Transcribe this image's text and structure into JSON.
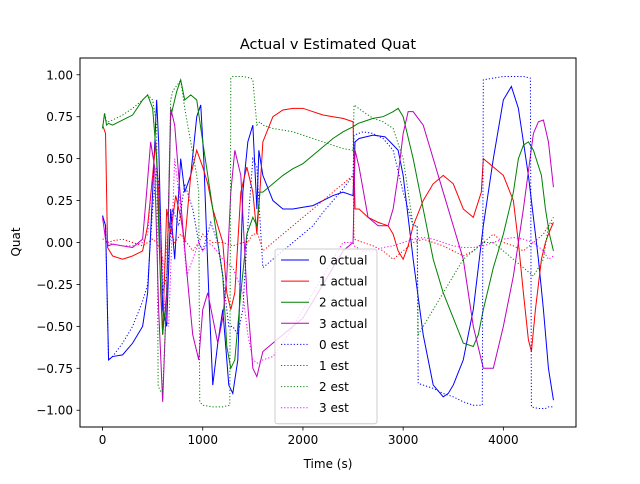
{
  "chart_data": {
    "type": "line",
    "title": "Actual v Estimated Quat",
    "xlabel": "Time (s)",
    "ylabel": "Quat",
    "xlim": [
      -225,
      4725
    ],
    "ylim": [
      -1.1,
      1.1
    ],
    "xticks": [
      0,
      1000,
      2000,
      3000,
      4000
    ],
    "xtick_labels": [
      "0",
      "1000",
      "2000",
      "3000",
      "4000"
    ],
    "yticks": [
      -1.0,
      -0.75,
      -0.5,
      -0.25,
      0.0,
      0.25,
      0.5,
      0.75,
      1.0
    ],
    "ytick_labels": [
      "−1.00",
      "−0.75",
      "−0.50",
      "−0.25",
      "0.00",
      "0.25",
      "0.50",
      "0.75",
      "1.00"
    ],
    "grid": false,
    "legend_position": "lower-center",
    "series": [
      {
        "name": "0 actual",
        "color": "#0000ff",
        "dash": "solid",
        "x": [
          0,
          30,
          60,
          100,
          200,
          300,
          400,
          450,
          500,
          540,
          560,
          600,
          640,
          680,
          720,
          780,
          820,
          880,
          940,
          980,
          1010,
          1060,
          1100,
          1150,
          1200,
          1260,
          1300,
          1350,
          1400,
          1450,
          1500,
          1540,
          1560,
          1600,
          1700,
          1800,
          1900,
          2000,
          2100,
          2200,
          2300,
          2400,
          2500,
          2520,
          2560,
          2700,
          2820,
          2870,
          2950,
          3000,
          3100,
          3200,
          3300,
          3400,
          3450,
          3500,
          3600,
          3700,
          3800,
          3900,
          4000,
          4080,
          4150,
          4250,
          4350,
          4400,
          4450,
          4500
        ],
        "y": [
          0.16,
          0.1,
          -0.7,
          -0.68,
          -0.67,
          -0.6,
          -0.5,
          -0.3,
          0.3,
          0.85,
          0.6,
          -0.4,
          -0.5,
          0.2,
          -0.1,
          0.5,
          0.3,
          0.4,
          0.75,
          0.82,
          0.5,
          -0.3,
          -0.85,
          -0.6,
          -0.4,
          -0.85,
          -0.9,
          -0.7,
          0.3,
          0.6,
          0.7,
          0.2,
          0.55,
          0.4,
          0.25,
          0.2,
          0.2,
          0.21,
          0.22,
          0.25,
          0.28,
          0.3,
          0.28,
          0.6,
          0.62,
          0.64,
          0.63,
          0.6,
          0.55,
          0.4,
          -0.1,
          -0.55,
          -0.85,
          -0.92,
          -0.9,
          -0.85,
          -0.7,
          -0.4,
          0.1,
          0.5,
          0.85,
          0.93,
          0.8,
          0.4,
          -0.1,
          -0.4,
          -0.75,
          -0.94
        ]
      },
      {
        "name": "1 actual",
        "color": "#ff0000",
        "dash": "solid",
        "x": [
          0,
          30,
          50,
          100,
          200,
          300,
          400,
          450,
          500,
          530,
          560,
          580,
          600,
          640,
          680,
          730,
          780,
          820,
          880,
          940,
          1000,
          1050,
          1100,
          1150,
          1200,
          1240,
          1280,
          1320,
          1380,
          1440,
          1500,
          1540,
          1570,
          1600,
          1700,
          1800,
          1900,
          2000,
          2100,
          2200,
          2300,
          2400,
          2500,
          2520,
          2560,
          2650,
          2750,
          2850,
          2900,
          2950,
          3000,
          3050,
          3100,
          3200,
          3300,
          3400,
          3500,
          3600,
          3700,
          3780,
          3800,
          3900,
          4000,
          4100,
          4150,
          4200,
          4250,
          4280,
          4320,
          4380,
          4420,
          4450,
          4500
        ],
        "y": [
          0.7,
          0.65,
          -0.03,
          -0.08,
          -0.1,
          -0.08,
          -0.05,
          0.1,
          0.4,
          0.6,
          0.3,
          -0.3,
          -0.55,
          0.2,
          0.05,
          0.28,
          0.15,
          0.0,
          0.4,
          0.55,
          0.45,
          0.35,
          0.2,
          0.1,
          0.0,
          -0.3,
          -0.4,
          -0.3,
          0.3,
          0.45,
          0.3,
          0.05,
          0.3,
          0.6,
          0.75,
          0.79,
          0.8,
          0.8,
          0.78,
          0.76,
          0.75,
          0.74,
          0.72,
          0.2,
          0.2,
          0.15,
          0.12,
          0.1,
          0.05,
          -0.05,
          -0.1,
          -0.02,
          0.1,
          0.25,
          0.35,
          0.4,
          0.35,
          0.2,
          0.15,
          0.3,
          0.5,
          0.45,
          0.4,
          0.25,
          0.0,
          -0.3,
          -0.58,
          -0.65,
          -0.4,
          -0.1,
          0.0,
          0.05,
          0.12
        ]
      },
      {
        "name": "2 actual",
        "color": "#008000",
        "dash": "solid",
        "x": [
          0,
          20,
          40,
          60,
          100,
          200,
          300,
          400,
          450,
          500,
          540,
          570,
          600,
          640,
          680,
          740,
          780,
          820,
          880,
          940,
          1000,
          1050,
          1100,
          1150,
          1200,
          1240,
          1280,
          1320,
          1380,
          1440,
          1500,
          1540,
          1570,
          1600,
          1700,
          1800,
          1900,
          2000,
          2100,
          2200,
          2300,
          2400,
          2500,
          2550,
          2600,
          2700,
          2800,
          2900,
          2950,
          3000,
          3100,
          3200,
          3300,
          3400,
          3500,
          3600,
          3700,
          3750,
          3800,
          3900,
          4000,
          4100,
          4150,
          4200,
          4250,
          4300,
          4380,
          4420,
          4460,
          4500
        ],
        "y": [
          0.68,
          0.77,
          0.7,
          0.71,
          0.7,
          0.73,
          0.76,
          0.85,
          0.88,
          0.8,
          0.5,
          -0.1,
          -0.55,
          -0.3,
          0.75,
          0.9,
          0.97,
          0.85,
          0.88,
          0.85,
          0.6,
          0.4,
          0.2,
          0.0,
          -0.2,
          -0.62,
          -0.75,
          -0.7,
          -0.3,
          0.05,
          0.15,
          0.1,
          0.3,
          0.3,
          0.35,
          0.4,
          0.44,
          0.47,
          0.52,
          0.57,
          0.62,
          0.66,
          0.69,
          0.71,
          0.72,
          0.74,
          0.75,
          0.78,
          0.8,
          0.75,
          0.5,
          0.2,
          -0.1,
          -0.3,
          -0.45,
          -0.6,
          -0.62,
          -0.55,
          -0.4,
          -0.15,
          0.05,
          0.3,
          0.5,
          0.58,
          0.6,
          0.55,
          0.4,
          0.2,
          0.05,
          -0.05
        ]
      },
      {
        "name": "3 actual",
        "color": "#bf00bf",
        "dash": "solid",
        "x": [
          0,
          30,
          60,
          100,
          200,
          300,
          400,
          440,
          480,
          520,
          560,
          600,
          640,
          680,
          720,
          760,
          800,
          860,
          900,
          960,
          1000,
          1050,
          1100,
          1150,
          1200,
          1240,
          1280,
          1320,
          1380,
          1440,
          1500,
          1540,
          1560,
          1600,
          1700,
          1800,
          1900,
          2000,
          2100,
          2200,
          2300,
          2400,
          2500,
          2520,
          2560,
          2650,
          2750,
          2850,
          2900,
          2950,
          3000,
          3050,
          3100,
          3200,
          3300,
          3400,
          3500,
          3600,
          3700,
          3800,
          3900,
          4000,
          4100,
          4200,
          4300,
          4350,
          4400,
          4450,
          4500
        ],
        "y": [
          0.15,
          0.02,
          -0.02,
          -0.01,
          -0.02,
          -0.03,
          0.02,
          0.3,
          0.6,
          0.45,
          -0.4,
          -0.95,
          -0.3,
          0.8,
          0.7,
          0.4,
          0.1,
          -0.3,
          -0.55,
          -0.7,
          -0.4,
          -0.3,
          -0.45,
          -0.6,
          -0.45,
          -0.2,
          0.3,
          0.55,
          0.4,
          -0.3,
          -0.75,
          -0.8,
          -0.75,
          -0.65,
          -0.6,
          -0.55,
          -0.5,
          -0.45,
          -0.35,
          -0.25,
          -0.15,
          -0.05,
          0.0,
          0.55,
          0.45,
          0.15,
          0.1,
          0.1,
          0.2,
          0.4,
          0.65,
          0.78,
          0.78,
          0.7,
          0.5,
          0.3,
          0.1,
          -0.1,
          -0.5,
          -0.75,
          -0.75,
          -0.5,
          -0.2,
          0.2,
          0.65,
          0.72,
          0.73,
          0.6,
          0.33
        ]
      },
      {
        "name": "0 est",
        "color": "#0000ff",
        "dash": "dotted",
        "x": [
          0,
          30,
          60,
          100,
          200,
          300,
          400,
          450,
          500,
          540,
          570,
          600,
          640,
          700,
          760,
          820,
          900,
          960,
          1000,
          1080,
          1150,
          1200,
          1260,
          1300,
          1350,
          1400,
          1450,
          1500,
          1540,
          1600,
          1700,
          1800,
          1900,
          2000,
          2100,
          2200,
          2300,
          2400,
          2500,
          2510,
          2600,
          2700,
          2800,
          2900,
          3000,
          3100,
          3140,
          3150,
          3200,
          3300,
          3400,
          3500,
          3600,
          3700,
          3790,
          3800,
          3900,
          4000,
          4100,
          4200,
          4270,
          4280,
          4350,
          4420,
          4450,
          4500
        ],
        "y": [
          0.16,
          0.1,
          -0.7,
          -0.68,
          -0.6,
          -0.5,
          -0.35,
          -0.25,
          0.2,
          0.45,
          0.3,
          -0.3,
          -0.2,
          0.2,
          0.1,
          0.35,
          0.2,
          0.0,
          -0.05,
          0.12,
          0.0,
          -0.2,
          -0.5,
          -0.5,
          -0.55,
          -0.4,
          0.1,
          0.5,
          0.45,
          -0.15,
          -0.1,
          -0.05,
          0.0,
          0.05,
          0.1,
          0.18,
          0.25,
          0.32,
          0.4,
          0.64,
          0.66,
          0.65,
          0.62,
          0.55,
          0.3,
          0.1,
          0.1,
          -0.84,
          -0.85,
          -0.87,
          -0.9,
          -0.92,
          -0.95,
          -0.97,
          -0.97,
          0.97,
          0.98,
          0.99,
          0.99,
          0.99,
          0.98,
          -0.98,
          -0.99,
          -0.99,
          -0.98,
          -0.98
        ]
      },
      {
        "name": "1 est",
        "color": "#ff0000",
        "dash": "dotted",
        "x": [
          0,
          30,
          60,
          100,
          200,
          300,
          400,
          450,
          500,
          540,
          580,
          620,
          660,
          720,
          780,
          840,
          900,
          960,
          1000,
          1050,
          1100,
          1200,
          1300,
          1400,
          1450,
          1500,
          1550,
          1600,
          1700,
          1800,
          1900,
          2000,
          2100,
          2200,
          2300,
          2400,
          2500,
          2510,
          2600,
          2700,
          2800,
          2900,
          3000,
          3100,
          3200,
          3300,
          3400,
          3500,
          3600,
          3700,
          3800,
          3900,
          4000,
          4100,
          4200,
          4300,
          4400,
          4450,
          4500
        ],
        "y": [
          0.02,
          0.02,
          0.0,
          0.01,
          0.02,
          0.0,
          -0.02,
          0.0,
          0.02,
          0.0,
          -0.05,
          -0.15,
          0.1,
          0.0,
          0.05,
          0.0,
          -0.05,
          0.0,
          0.05,
          0.02,
          0.0,
          0.0,
          -0.02,
          0.0,
          0.0,
          0.05,
          0.05,
          -0.05,
          0.0,
          0.05,
          0.1,
          0.15,
          0.2,
          0.25,
          0.3,
          0.35,
          0.4,
          0.02,
          0.0,
          -0.02,
          -0.05,
          -0.1,
          -0.05,
          0.0,
          0.02,
          0.0,
          -0.02,
          -0.05,
          -0.08,
          -0.05,
          0.0,
          0.05,
          0.0,
          -0.02,
          -0.05,
          0.0,
          0.05,
          0.1,
          0.12
        ]
      },
      {
        "name": "2 est",
        "color": "#008000",
        "dash": "dotted",
        "x": [
          0,
          20,
          40,
          60,
          100,
          200,
          300,
          400,
          450,
          500,
          540,
          555,
          570,
          600,
          640,
          680,
          700,
          720,
          760,
          780,
          820,
          880,
          940,
          960,
          970,
          1000,
          1100,
          1200,
          1270,
          1280,
          1300,
          1400,
          1480,
          1500,
          1540,
          1570,
          1600,
          1700,
          1800,
          1900,
          2000,
          2100,
          2200,
          2300,
          2400,
          2500,
          2510,
          2600,
          2700,
          2800,
          2900,
          3000,
          3100,
          3140,
          3150,
          3200,
          3300,
          3400,
          3500,
          3600,
          3700,
          3800,
          3900,
          4000,
          4100,
          4200,
          4300,
          4350,
          4400,
          4450,
          4500
        ],
        "y": [
          0.68,
          0.77,
          0.72,
          0.72,
          0.73,
          0.76,
          0.8,
          0.85,
          0.88,
          0.85,
          0.7,
          -0.85,
          -0.88,
          -0.9,
          -0.3,
          0.85,
          0.9,
          0.92,
          0.95,
          0.97,
          0.8,
          0.6,
          0.4,
          0.3,
          -0.95,
          -0.97,
          -0.98,
          -0.98,
          -0.97,
          0.98,
          0.99,
          0.99,
          0.98,
          0.97,
          0.7,
          0.72,
          0.7,
          0.68,
          0.67,
          0.66,
          0.64,
          0.62,
          0.6,
          0.58,
          0.56,
          0.55,
          0.82,
          0.78,
          0.74,
          0.72,
          0.68,
          0.5,
          0.1,
          0.1,
          -0.55,
          -0.5,
          -0.4,
          -0.3,
          -0.2,
          -0.1,
          -0.05,
          0.0,
          0.0,
          -0.05,
          -0.1,
          -0.15,
          -0.2,
          -0.15,
          -0.1,
          0.1,
          0.15
        ]
      },
      {
        "name": "3 est",
        "color": "#ff00ff",
        "dash": "dotted",
        "x": [
          0,
          30,
          60,
          100,
          200,
          300,
          400,
          450,
          500,
          540,
          580,
          620,
          660,
          720,
          780,
          840,
          900,
          960,
          1000,
          1050,
          1100,
          1200,
          1300,
          1400,
          1450,
          1500,
          1550,
          1600,
          1700,
          1800,
          1900,
          2000,
          2100,
          2200,
          2300,
          2400,
          2500,
          2510,
          2600,
          2700,
          2800,
          2900,
          3000,
          3100,
          3200,
          3300,
          3400,
          3500,
          3600,
          3700,
          3800,
          3900,
          4000,
          4100,
          4200,
          4300,
          4400,
          4450,
          4500
        ],
        "y": [
          0.15,
          0.02,
          0.0,
          -0.01,
          -0.02,
          -0.02,
          0.0,
          0.05,
          0.4,
          0.45,
          0.1,
          -0.4,
          -0.5,
          0.5,
          0.2,
          -0.2,
          -0.1,
          0.0,
          -0.05,
          0.0,
          -0.02,
          -0.1,
          -0.15,
          -0.3,
          -0.55,
          -0.7,
          -0.72,
          -0.7,
          -0.68,
          -0.6,
          -0.5,
          -0.4,
          -0.3,
          -0.2,
          -0.1,
          0.0,
          0.0,
          -0.02,
          -0.05,
          -0.05,
          -0.03,
          -0.02,
          0.0,
          0.02,
          0.03,
          0.02,
          0.0,
          -0.02,
          -0.03,
          -0.03,
          -0.02,
          0.0,
          0.02,
          0.03,
          0.02,
          0.0,
          -0.05,
          -0.1,
          -0.08
        ]
      }
    ]
  }
}
